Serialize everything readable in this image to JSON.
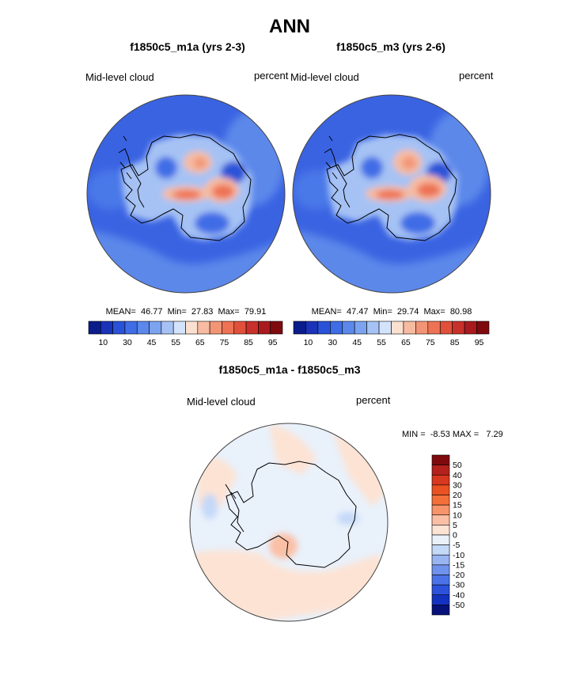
{
  "figure": {
    "title": "ANN",
    "diff_title": "f1850c5_m1a - f1850c5_m3"
  },
  "colors": {
    "abs_scale": [
      "#0b1d8a",
      "#1a33b8",
      "#2a52d8",
      "#3f6de6",
      "#5b88ea",
      "#7ca3ef",
      "#a6c2f4",
      "#d2e3fb",
      "#fbe0d0",
      "#f6bba0",
      "#f29576",
      "#ee7254",
      "#e0503a",
      "#c8302a",
      "#a81a1e",
      "#7e0a0e"
    ],
    "diff_scale": [
      "#7e0a0e",
      "#b5211d",
      "#d8381f",
      "#ea5223",
      "#f4703a",
      "#f8946a",
      "#fbbfa5",
      "#fde3d4",
      "#e9f1fb",
      "#c4d8f8",
      "#98b5f1",
      "#6f92ec",
      "#4b73e7",
      "#2c52dc",
      "#1432c0",
      "#06127a"
    ],
    "coast": "#000000",
    "rim": "#444444"
  },
  "chart_data": [
    {
      "type": "heatmap",
      "projection": "south-polar-stereographic",
      "subtitle": "f1850c5_m1a (yrs 2-3)",
      "variable_label": "Mid-level cloud",
      "units_label": "percent",
      "stats": {
        "mean": 46.77,
        "min": 27.83,
        "max": 79.91
      },
      "stats_text": "MEAN=  46.77  Min=  27.83  Max=  79.91",
      "colorbar": {
        "orientation": "horizontal",
        "levels": [
          10,
          15,
          20,
          25,
          30,
          35,
          40,
          45,
          50,
          55,
          60,
          65,
          70,
          75,
          80,
          85,
          90,
          95
        ],
        "tick_labels": [
          "10",
          "30",
          "45",
          "55",
          "65",
          "75",
          "85",
          "95"
        ]
      }
    },
    {
      "type": "heatmap",
      "projection": "south-polar-stereographic",
      "subtitle": "f1850c5_m3 (yrs 2-6)",
      "variable_label": "Mid-level cloud",
      "units_label": "percent",
      "stats": {
        "mean": 47.47,
        "min": 29.74,
        "max": 80.98
      },
      "stats_text": "MEAN=  47.47  Min=  29.74  Max=  80.98",
      "colorbar": {
        "orientation": "horizontal",
        "levels": [
          10,
          15,
          20,
          25,
          30,
          35,
          40,
          45,
          50,
          55,
          60,
          65,
          70,
          75,
          80,
          85,
          90,
          95
        ],
        "tick_labels": [
          "10",
          "30",
          "45",
          "55",
          "65",
          "75",
          "85",
          "95"
        ]
      }
    },
    {
      "type": "heatmap",
      "projection": "south-polar-stereographic",
      "variable_label": "Mid-level cloud",
      "units_label": "percent",
      "stats": {
        "min": -8.53,
        "max": 7.29
      },
      "stats_text": "MIN =  -8.53 MAX =   7.29",
      "colorbar": {
        "orientation": "vertical",
        "levels": [
          50,
          40,
          30,
          20,
          15,
          10,
          5,
          0,
          -5,
          -10,
          -15,
          -20,
          -30,
          -40,
          -50
        ],
        "tick_labels": [
          "50",
          "40",
          "30",
          "20",
          "15",
          "10",
          "5",
          "0",
          "-5",
          "-10",
          "-15",
          "-20",
          "-30",
          "-40",
          "-50"
        ]
      }
    }
  ]
}
